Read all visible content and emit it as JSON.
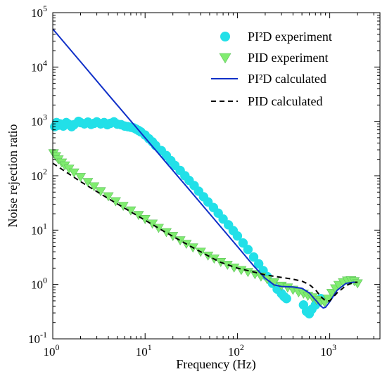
{
  "chart_data": {
    "type": "scatter",
    "xlabel": "Frequency (Hz)",
    "ylabel": "Noise rejection ratio",
    "xscale": "log",
    "yscale": "log",
    "xlim": [
      1,
      3500
    ],
    "ylim": [
      0.1,
      100000
    ],
    "xticks": [
      {
        "value": 1,
        "base": "10",
        "exp": "0"
      },
      {
        "value": 10,
        "base": "10",
        "exp": "1"
      },
      {
        "value": 100,
        "base": "10",
        "exp": "2"
      },
      {
        "value": 1000,
        "base": "10",
        "exp": "3"
      }
    ],
    "yticks": [
      {
        "value": 0.1,
        "base": "10",
        "exp": "-1"
      },
      {
        "value": 1,
        "base": "10",
        "exp": "0"
      },
      {
        "value": 10,
        "base": "10",
        "exp": "1"
      },
      {
        "value": 100,
        "base": "10",
        "exp": "2"
      },
      {
        "value": 1000,
        "base": "10",
        "exp": "3"
      },
      {
        "value": 10000,
        "base": "10",
        "exp": "4"
      },
      {
        "value": 100000,
        "base": "10",
        "exp": "5"
      }
    ],
    "grid": false,
    "legend_position": "top-right",
    "legend": [
      {
        "label": "PI²D experiment",
        "marker": "circle",
        "color": "#22e0e8"
      },
      {
        "label": "PID experiment",
        "marker": "triangle-down",
        "color": "#80ec70"
      },
      {
        "label": "PI²D calculated",
        "marker": "solid-line",
        "color": "#1030c8"
      },
      {
        "label": "PID calculated",
        "marker": "dashed-line",
        "color": "#000000"
      }
    ],
    "series": [
      {
        "name": "PI²D experiment",
        "kind": "markers",
        "marker": "circle",
        "color": "#22e0e8",
        "points": [
          [
            1.05,
            800
          ],
          [
            1.1,
            950
          ],
          [
            1.15,
            850
          ],
          [
            1.2,
            900
          ],
          [
            1.3,
            820
          ],
          [
            1.4,
            950
          ],
          [
            1.5,
            880
          ],
          [
            1.6,
            800
          ],
          [
            1.7,
            870
          ],
          [
            1.9,
            1000
          ],
          [
            2.0,
            950
          ],
          [
            2.2,
            900
          ],
          [
            2.4,
            970
          ],
          [
            2.6,
            880
          ],
          [
            2.8,
            920
          ],
          [
            3.0,
            980
          ],
          [
            3.3,
            900
          ],
          [
            3.6,
            950
          ],
          [
            3.9,
            870
          ],
          [
            4.2,
            920
          ],
          [
            4.6,
            980
          ],
          [
            5.0,
            890
          ],
          [
            5.5,
            870
          ],
          [
            6.0,
            820
          ],
          [
            6.5,
            800
          ],
          [
            7.0,
            780
          ],
          [
            7.5,
            760
          ],
          [
            8.0,
            720
          ],
          [
            8.5,
            680
          ],
          [
            9.0,
            640
          ],
          [
            10,
            560
          ],
          [
            11,
            480
          ],
          [
            12,
            420
          ],
          [
            13,
            360
          ],
          [
            15,
            290
          ],
          [
            17,
            235
          ],
          [
            19,
            190
          ],
          [
            21,
            155
          ],
          [
            24,
            125
          ],
          [
            27,
            100
          ],
          [
            30,
            82
          ],
          [
            34,
            66
          ],
          [
            38,
            52
          ],
          [
            43,
            41
          ],
          [
            48,
            33
          ],
          [
            55,
            26
          ],
          [
            62,
            20.5
          ],
          [
            70,
            16
          ],
          [
            80,
            12.5
          ],
          [
            90,
            9.8
          ],
          [
            100,
            7.8
          ],
          [
            115,
            5.8
          ],
          [
            130,
            4.4
          ],
          [
            150,
            3.2
          ],
          [
            170,
            2.4
          ],
          [
            190,
            1.8
          ],
          [
            210,
            1.4
          ],
          [
            240,
            1.05
          ],
          [
            270,
            0.82
          ],
          [
            300,
            0.68
          ],
          [
            320,
            0.6
          ],
          [
            340,
            0.55
          ],
          [
            520,
            0.42
          ],
          [
            560,
            0.32
          ],
          [
            600,
            0.29
          ],
          [
            640,
            0.35
          ],
          [
            700,
            0.42
          ],
          [
            750,
            0.48
          ],
          [
            800,
            0.55
          ]
        ]
      },
      {
        "name": "PID experiment",
        "kind": "markers",
        "marker": "triangle-down",
        "color": "#80ec70",
        "points": [
          [
            1.02,
            260
          ],
          [
            1.08,
            230
          ],
          [
            1.15,
            200
          ],
          [
            1.25,
            175
          ],
          [
            1.35,
            155
          ],
          [
            1.5,
            135
          ],
          [
            1.7,
            115
          ],
          [
            2.0,
            95
          ],
          [
            2.4,
            77
          ],
          [
            2.8,
            64
          ],
          [
            3.3,
            52
          ],
          [
            4.0,
            42
          ],
          [
            4.8,
            34
          ],
          [
            5.8,
            28
          ],
          [
            7.0,
            23
          ],
          [
            8.5,
            19
          ],
          [
            10,
            16
          ],
          [
            12,
            13.2
          ],
          [
            14,
            11
          ],
          [
            17,
            9.2
          ],
          [
            20,
            7.8
          ],
          [
            24,
            6.5
          ],
          [
            28,
            5.6
          ],
          [
            33,
            4.8
          ],
          [
            40,
            4.0
          ],
          [
            48,
            3.4
          ],
          [
            56,
            3.0
          ],
          [
            66,
            2.6
          ],
          [
            78,
            2.3
          ],
          [
            92,
            2.05
          ],
          [
            110,
            1.85
          ],
          [
            130,
            1.7
          ],
          [
            155,
            1.55
          ],
          [
            180,
            1.4
          ],
          [
            210,
            1.25
          ],
          [
            250,
            1.1
          ],
          [
            300,
            0.95
          ],
          [
            350,
            0.88
          ],
          [
            400,
            0.8
          ],
          [
            460,
            0.72
          ],
          [
            520,
            0.68
          ],
          [
            580,
            0.62
          ],
          [
            650,
            0.58
          ],
          [
            720,
            0.52
          ],
          [
            800,
            0.48
          ],
          [
            880,
            0.47
          ],
          [
            960,
            0.55
          ],
          [
            1050,
            0.7
          ],
          [
            1150,
            0.85
          ],
          [
            1250,
            0.98
          ],
          [
            1400,
            1.1
          ],
          [
            1550,
            1.18
          ],
          [
            1700,
            1.2
          ],
          [
            1850,
            1.15
          ],
          [
            2000,
            1.05
          ]
        ]
      },
      {
        "name": "PI²D calculated",
        "kind": "line",
        "style": "solid",
        "color": "#1030c8",
        "points": [
          [
            1,
            50000
          ],
          [
            2,
            12500
          ],
          [
            4,
            3100
          ],
          [
            8,
            780
          ],
          [
            16,
            195
          ],
          [
            32,
            49
          ],
          [
            64,
            12.2
          ],
          [
            100,
            5.0
          ],
          [
            150,
            2.2
          ],
          [
            200,
            1.3
          ],
          [
            250,
            0.98
          ],
          [
            300,
            0.92
          ],
          [
            400,
            0.9
          ],
          [
            500,
            0.85
          ],
          [
            600,
            0.7
          ],
          [
            700,
            0.52
          ],
          [
            800,
            0.4
          ],
          [
            850,
            0.37
          ],
          [
            900,
            0.38
          ],
          [
            1000,
            0.48
          ],
          [
            1200,
            0.78
          ],
          [
            1500,
            1.05
          ],
          [
            1800,
            1.1
          ],
          [
            2000,
            1.1
          ]
        ]
      },
      {
        "name": "PID calculated",
        "kind": "line",
        "style": "dashed",
        "color": "#000000",
        "points": [
          [
            1,
            170
          ],
          [
            2,
            78
          ],
          [
            4,
            38
          ],
          [
            8,
            19
          ],
          [
            16,
            9.5
          ],
          [
            32,
            4.9
          ],
          [
            64,
            2.6
          ],
          [
            100,
            2.0
          ],
          [
            150,
            1.7
          ],
          [
            200,
            1.5
          ],
          [
            300,
            1.35
          ],
          [
            400,
            1.25
          ],
          [
            500,
            1.15
          ],
          [
            600,
            1.0
          ],
          [
            700,
            0.8
          ],
          [
            800,
            0.6
          ],
          [
            900,
            0.5
          ],
          [
            1000,
            0.5
          ],
          [
            1200,
            0.7
          ],
          [
            1500,
            0.95
          ],
          [
            1800,
            1.1
          ],
          [
            2000,
            1.1
          ]
        ]
      }
    ]
  }
}
